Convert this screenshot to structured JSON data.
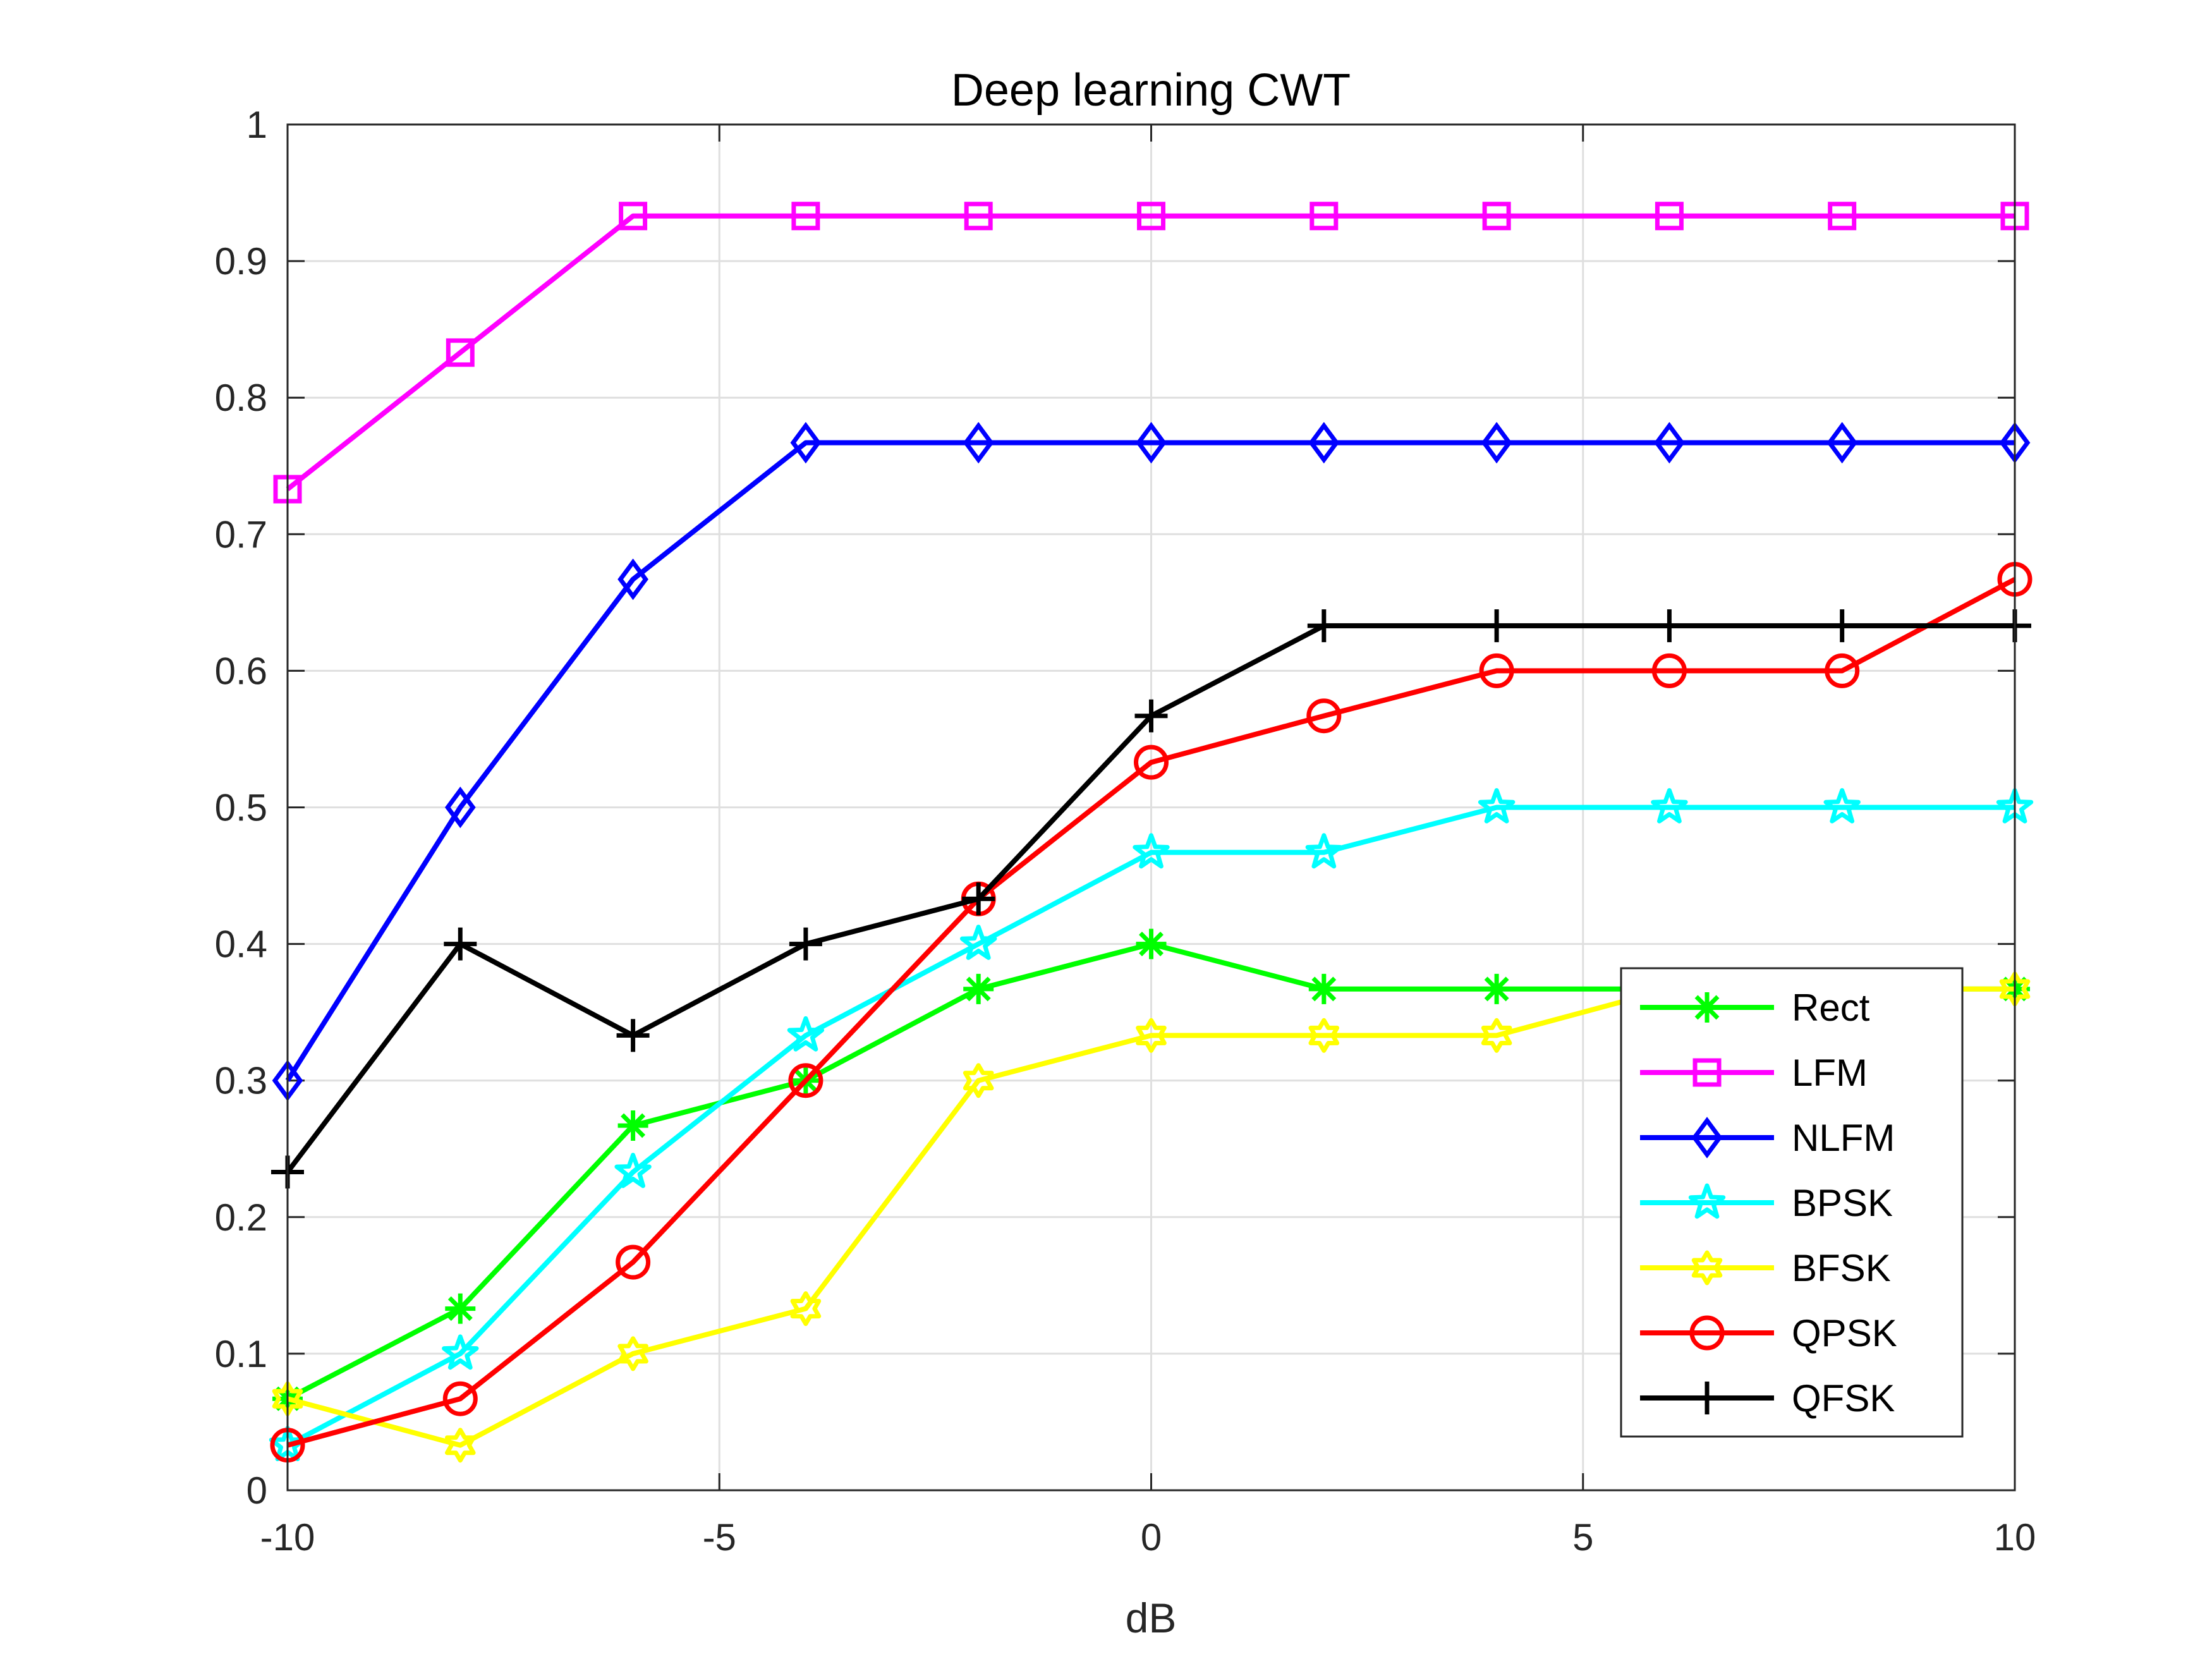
{
  "chart_data": {
    "type": "line",
    "title": "Deep learning CWT",
    "xlabel": "dB",
    "ylabel": "",
    "xlim": [
      -10,
      10
    ],
    "ylim": [
      0,
      1
    ],
    "xticks": [
      -10,
      -5,
      0,
      5,
      10
    ],
    "xtick_labels": [
      "-10",
      "-5",
      "0",
      "5",
      "10"
    ],
    "yticks": [
      0,
      0.1,
      0.2,
      0.3,
      0.4,
      0.5,
      0.6,
      0.7,
      0.8,
      0.9,
      1
    ],
    "ytick_labels": [
      "0",
      "0.1",
      "0.2",
      "0.3",
      "0.4",
      "0.5",
      "0.6",
      "0.7",
      "0.8",
      "0.9",
      "1"
    ],
    "grid": true,
    "legend_position": "bottom-right",
    "x": [
      -10,
      -8,
      -6,
      -4,
      -2,
      0,
      2,
      4,
      6,
      8,
      10
    ],
    "series": [
      {
        "name": "Rect",
        "color": "#00ff00",
        "marker": "asterisk",
        "values": [
          0.067,
          0.133,
          0.267,
          0.3,
          0.367,
          0.4,
          0.367,
          0.367,
          0.367,
          0.367,
          0.367
        ]
      },
      {
        "name": "LFM",
        "color": "#ff00ff",
        "marker": "square",
        "values": [
          0.733,
          0.833,
          0.933,
          0.933,
          0.933,
          0.933,
          0.933,
          0.933,
          0.933,
          0.933,
          0.933
        ]
      },
      {
        "name": "NLFM",
        "color": "#0000ff",
        "marker": "diamond",
        "values": [
          0.3,
          0.5,
          0.667,
          0.767,
          0.767,
          0.767,
          0.767,
          0.767,
          0.767,
          0.767,
          0.767
        ]
      },
      {
        "name": "BPSK",
        "color": "#00ffff",
        "marker": "pentagram",
        "values": [
          0.033,
          0.1,
          0.233,
          0.333,
          0.4,
          0.467,
          0.467,
          0.5,
          0.5,
          0.5,
          0.5
        ]
      },
      {
        "name": "BFSK",
        "color": "#ffff00",
        "marker": "hexagram",
        "values": [
          0.067,
          0.033,
          0.1,
          0.133,
          0.3,
          0.333,
          0.333,
          0.333,
          0.367,
          0.367,
          0.367
        ]
      },
      {
        "name": "QPSK",
        "color": "#ff0000",
        "marker": "circle",
        "values": [
          0.033,
          0.067,
          0.167,
          0.3,
          0.433,
          0.533,
          0.567,
          0.6,
          0.6,
          0.6,
          0.667
        ]
      },
      {
        "name": "QFSK",
        "color": "#000000",
        "marker": "plus",
        "values": [
          0.233,
          0.4,
          0.333,
          0.4,
          0.433,
          0.567,
          0.633,
          0.633,
          0.633,
          0.633,
          0.633
        ]
      }
    ]
  }
}
